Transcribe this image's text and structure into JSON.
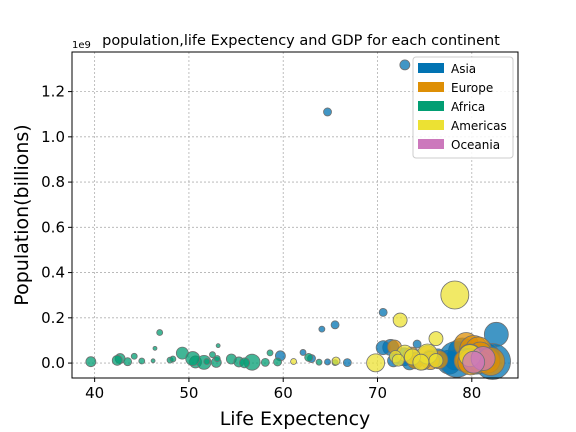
{
  "chart_data": {
    "type": "scatter",
    "title": "population,life Expectency and GDP for each continent",
    "xlabel": "Life Expectency",
    "ylabel": "Population(billions)",
    "y_offset_label": "1e9",
    "xlim": [
      37.6,
      84.9
    ],
    "ylim": [
      -0.066,
      1.375
    ],
    "x_ticks": [
      40,
      50,
      60,
      70,
      80
    ],
    "y_ticks": [
      0.0,
      0.2,
      0.4,
      0.6,
      0.8,
      1.0,
      1.2
    ],
    "y_tick_labels": [
      "0.0",
      "0.2",
      "0.4",
      "0.6",
      "0.8",
      "1.0",
      "1.2"
    ],
    "grid": true,
    "legend_position": "top-right",
    "legend": [
      {
        "name": "Asia",
        "color": "#0173b2"
      },
      {
        "name": "Europe",
        "color": "#de8f05"
      },
      {
        "name": "Africa",
        "color": "#029e73"
      },
      {
        "name": "Americas",
        "color": "#ece133"
      },
      {
        "name": "Oceania",
        "color": "#cc78bc"
      }
    ],
    "series": [
      {
        "name": "Asia",
        "color": "#0173b2",
        "points": [
          [
            72.9,
            1.318,
            5
          ],
          [
            64.7,
            1.11,
            4
          ],
          [
            65.5,
            0.169,
            4
          ],
          [
            70.6,
            0.224,
            4
          ],
          [
            64.1,
            0.15,
            3
          ],
          [
            82.6,
            0.127,
            12
          ],
          [
            79.0,
            0.049,
            14
          ],
          [
            80.5,
            0.022,
            16
          ],
          [
            82.2,
            0.007,
            18
          ],
          [
            81.5,
            0.028,
            14
          ],
          [
            78.2,
            0.014,
            10
          ],
          [
            77.6,
            0.004,
            12
          ],
          [
            76.4,
            0.023,
            9
          ],
          [
            74.2,
            0.084,
            4
          ],
          [
            71.4,
            0.069,
            8
          ],
          [
            70.6,
            0.068,
            7
          ],
          [
            72.8,
            0.028,
            9
          ],
          [
            74.0,
            0.006,
            6
          ],
          [
            75.6,
            0.023,
            8
          ],
          [
            73.4,
            0.001,
            7
          ],
          [
            59.7,
            0.032,
            5
          ],
          [
            62.1,
            0.047,
            3
          ],
          [
            63.0,
            0.02,
            4
          ],
          [
            66.8,
            0.002,
            4
          ],
          [
            64.7,
            0.005,
            3
          ],
          [
            71.7,
            0.01,
            6
          ],
          [
            78.4,
            0.017,
            18
          ]
        ]
      },
      {
        "name": "Europe",
        "color": "#de8f05",
        "points": [
          [
            79.4,
            0.082,
            12
          ],
          [
            80.2,
            0.06,
            14
          ],
          [
            80.7,
            0.058,
            13
          ],
          [
            80.9,
            0.04,
            12
          ],
          [
            79.8,
            0.031,
            12
          ],
          [
            75.3,
            0.038,
            9
          ],
          [
            73.6,
            0.035,
            8
          ],
          [
            79.5,
            0.016,
            11
          ],
          [
            81.2,
            0.01,
            12
          ],
          [
            79.3,
            0.01,
            11
          ],
          [
            81.7,
            0.009,
            12
          ],
          [
            80.4,
            0.005,
            11
          ],
          [
            76.5,
            0.015,
            9
          ],
          [
            75.6,
            0.011,
            9
          ],
          [
            71.8,
            0.071,
            7
          ],
          [
            74.0,
            0.01,
            8
          ],
          [
            80.9,
            0.004,
            11
          ],
          [
            82.0,
            0.007,
            14
          ],
          [
            74.8,
            0.005,
            8
          ],
          [
            79.9,
            0.005,
            13
          ]
        ]
      },
      {
        "name": "Africa",
        "color": "#029e73",
        "points": [
          [
            46.9,
            0.135,
            3
          ],
          [
            49.3,
            0.044,
            6
          ],
          [
            56.7,
            0.004,
            8
          ],
          [
            50.7,
            0.005,
            6
          ],
          [
            52.9,
            0.003,
            5
          ],
          [
            46.2,
            0.01,
            2
          ],
          [
            54.5,
            0.018,
            5
          ],
          [
            42.7,
            0.02,
            5
          ],
          [
            39.6,
            0.006,
            5
          ],
          [
            51.6,
            0.003,
            7
          ],
          [
            53.0,
            0.02,
            3
          ],
          [
            55.3,
            0.005,
            5
          ],
          [
            58.6,
            0.045,
            3
          ],
          [
            59.4,
            0.005,
            4
          ],
          [
            48.0,
            0.013,
            3
          ],
          [
            42.4,
            0.012,
            5
          ],
          [
            43.5,
            0.006,
            4
          ],
          [
            44.2,
            0.03,
            3
          ],
          [
            46.4,
            0.065,
            2
          ],
          [
            48.3,
            0.018,
            3
          ],
          [
            50.4,
            0.02,
            7
          ],
          [
            52.5,
            0.037,
            3
          ],
          [
            55.9,
            0.001,
            5
          ],
          [
            58.1,
            0.003,
            4
          ],
          [
            62.7,
            0.025,
            4
          ],
          [
            65.5,
            0.002,
            3
          ],
          [
            63.8,
            0.004,
            3
          ],
          [
            45.0,
            0.009,
            3
          ],
          [
            51.9,
            0.007,
            3
          ],
          [
            53.1,
            0.077,
            2
          ]
        ]
      },
      {
        "name": "Americas",
        "color": "#ece133",
        "points": [
          [
            78.2,
            0.301,
            14
          ],
          [
            72.4,
            0.19,
            7
          ],
          [
            76.2,
            0.108,
            7
          ],
          [
            79.8,
            0.033,
            11
          ],
          [
            75.3,
            0.04,
            10
          ],
          [
            72.9,
            0.044,
            8
          ],
          [
            69.8,
            0.001,
            9
          ],
          [
            65.6,
            0.009,
            4
          ],
          [
            73.7,
            0.027,
            8
          ],
          [
            71.9,
            0.029,
            6
          ],
          [
            61.1,
            0.007,
            3
          ],
          [
            76.2,
            0.011,
            7
          ],
          [
            74.6,
            0.004,
            8
          ],
          [
            72.2,
            0.013,
            6
          ]
        ]
      },
      {
        "name": "Oceania",
        "color": "#cc78bc",
        "points": [
          [
            81.2,
            0.02,
            12
          ],
          [
            80.2,
            0.004,
            11
          ]
        ]
      }
    ]
  }
}
